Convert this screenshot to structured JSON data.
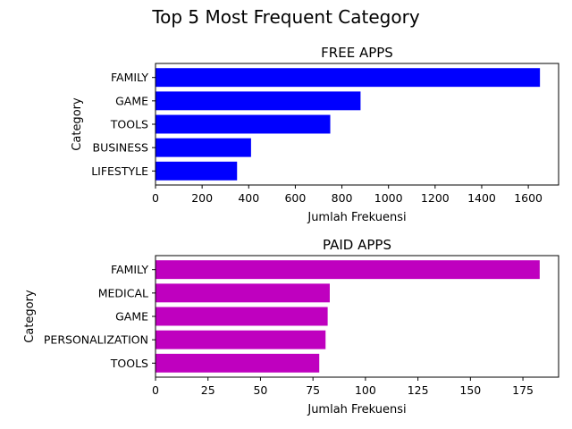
{
  "figure": {
    "suptitle": "Top 5 Most Frequent Category"
  },
  "chart_data": [
    {
      "type": "bar",
      "orientation": "horizontal",
      "title": "FREE APPS",
      "xlabel": "Jumlah Frekuensi",
      "ylabel": "Category",
      "categories": [
        "FAMILY",
        "GAME",
        "TOOLS",
        "BUSINESS",
        "LIFESTYLE"
      ],
      "values": [
        1650,
        880,
        750,
        410,
        350
      ],
      "xlim": [
        0,
        1730
      ],
      "xticks": [
        0,
        200,
        400,
        600,
        800,
        1000,
        1200,
        1400,
        1600
      ],
      "color": "#0000ff",
      "grid": false
    },
    {
      "type": "bar",
      "orientation": "horizontal",
      "title": "PAID APPS",
      "xlabel": "Jumlah Frekuensi",
      "ylabel": "Category",
      "categories": [
        "FAMILY",
        "MEDICAL",
        "GAME",
        "PERSONALIZATION",
        "TOOLS"
      ],
      "values": [
        183,
        83,
        82,
        81,
        78
      ],
      "xlim": [
        0,
        192
      ],
      "xticks": [
        0,
        25,
        50,
        75,
        100,
        125,
        150,
        175
      ],
      "color": "#bf00bf",
      "grid": false
    }
  ]
}
